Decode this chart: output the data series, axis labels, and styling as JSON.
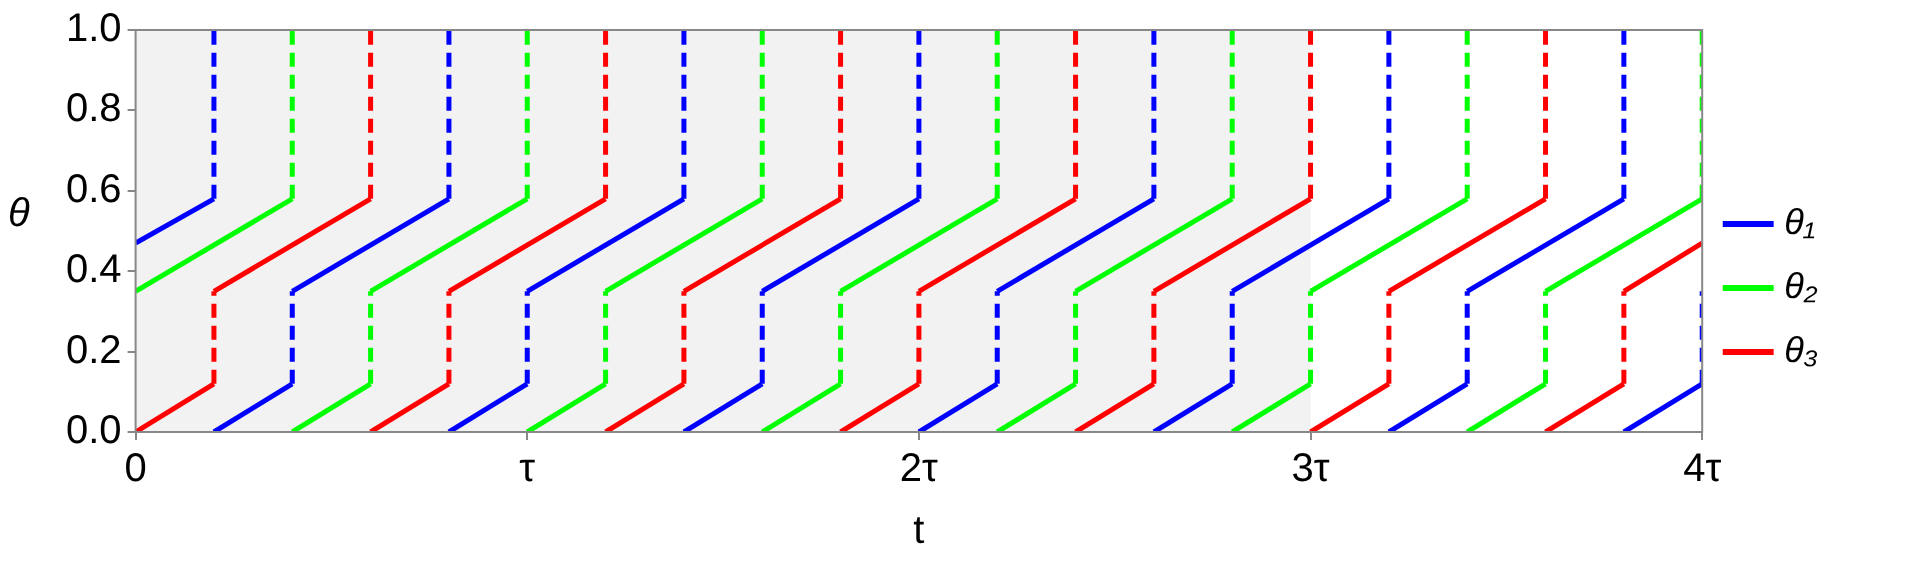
{
  "chart_data": {
    "type": "line",
    "xlabel": "t",
    "ylabel": "θ",
    "xlim": [
      0,
      4
    ],
    "xticks": [
      0,
      {
        "value": 1,
        "label": "τ"
      },
      {
        "value": 2,
        "label": "2τ"
      },
      {
        "value": 3,
        "label": "3τ"
      },
      {
        "value": 4,
        "label": "4τ"
      }
    ],
    "ylim": [
      0,
      1
    ],
    "yticks": [
      {
        "value": 0,
        "label": "0.0"
      },
      {
        "value": 0.2,
        "label": "0.2"
      },
      {
        "value": 0.4,
        "label": "0.4"
      },
      {
        "value": 0.6,
        "label": "0.6"
      },
      {
        "value": 0.8,
        "label": "0.8"
      },
      {
        "value": 1,
        "label": "1.0"
      }
    ],
    "grid": false,
    "legend": "right",
    "marker": "none",
    "bands": [
      {
        "axis": "x",
        "from": 0,
        "to": 3,
        "color": "#f2f2f2"
      }
    ],
    "series": [
      {
        "name": "θ₁",
        "color": "#0000ff",
        "x": [
          0,
          0.2,
          0.2,
          0.2,
          0.4,
          0.4,
          0.8,
          0.8,
          0.8,
          1.0,
          1.0,
          1.4,
          1.4,
          1.4,
          1.6,
          1.6,
          2.0,
          2.0,
          2.0,
          2.2,
          2.2,
          2.6,
          2.6,
          2.6,
          2.8,
          2.8,
          3.2,
          3.2,
          3.2,
          3.4,
          3.4,
          3.8,
          3.8,
          3.8,
          4.0,
          4.0
        ],
        "values": [
          0.47,
          0.58,
          1,
          0,
          0.12,
          0.35,
          0.58,
          1,
          0,
          0.12,
          0.35,
          0.58,
          1,
          0,
          0.12,
          0.35,
          0.58,
          1,
          0,
          0.12,
          0.35,
          0.58,
          1,
          0,
          0.12,
          0.35,
          0.58,
          1,
          0,
          0.12,
          0.35,
          0.58,
          1,
          0,
          0.12,
          0.35
        ]
      },
      {
        "name": "θ₂",
        "color": "#00ff00",
        "x": [
          0,
          0.4,
          0.4,
          0.4,
          0.6,
          0.6,
          1.0,
          1.0,
          1.0,
          1.2,
          1.2,
          1.6,
          1.6,
          1.6,
          1.8,
          1.8,
          2.2,
          2.2,
          2.2,
          2.4,
          2.4,
          2.8,
          2.8,
          2.8,
          3.0,
          3.0,
          3.4,
          3.4,
          3.4,
          3.6,
          3.6,
          4.0,
          4.0
        ],
        "values": [
          0.35,
          0.58,
          1,
          0,
          0.12,
          0.35,
          0.58,
          1,
          0,
          0.12,
          0.35,
          0.58,
          1,
          0,
          0.12,
          0.35,
          0.58,
          1,
          0,
          0.12,
          0.35,
          0.58,
          1,
          0,
          0.12,
          0.35,
          0.58,
          1,
          0,
          0.12,
          0.35,
          0.58,
          1
        ]
      },
      {
        "name": "θ₃",
        "color": "#ff0000",
        "x": [
          0,
          0.2,
          0.2,
          0.6,
          0.6,
          0.6,
          0.8,
          0.8,
          1.2,
          1.2,
          1.2,
          1.4,
          1.4,
          1.8,
          1.8,
          1.8,
          2.0,
          2.0,
          2.4,
          2.4,
          2.4,
          2.6,
          2.6,
          3.0,
          3.0,
          3.0,
          3.2,
          3.2,
          3.6,
          3.6,
          3.6,
          3.8,
          3.8,
          4.0
        ],
        "values": [
          0,
          0.12,
          0.35,
          0.58,
          1,
          0,
          0.12,
          0.35,
          0.58,
          1,
          0,
          0.12,
          0.35,
          0.58,
          1,
          0,
          0.12,
          0.35,
          0.58,
          1,
          0,
          0.12,
          0.35,
          0.58,
          1,
          0,
          0.12,
          0.35,
          0.58,
          1,
          0,
          0.12,
          0.35,
          0.47
        ]
      }
    ]
  }
}
